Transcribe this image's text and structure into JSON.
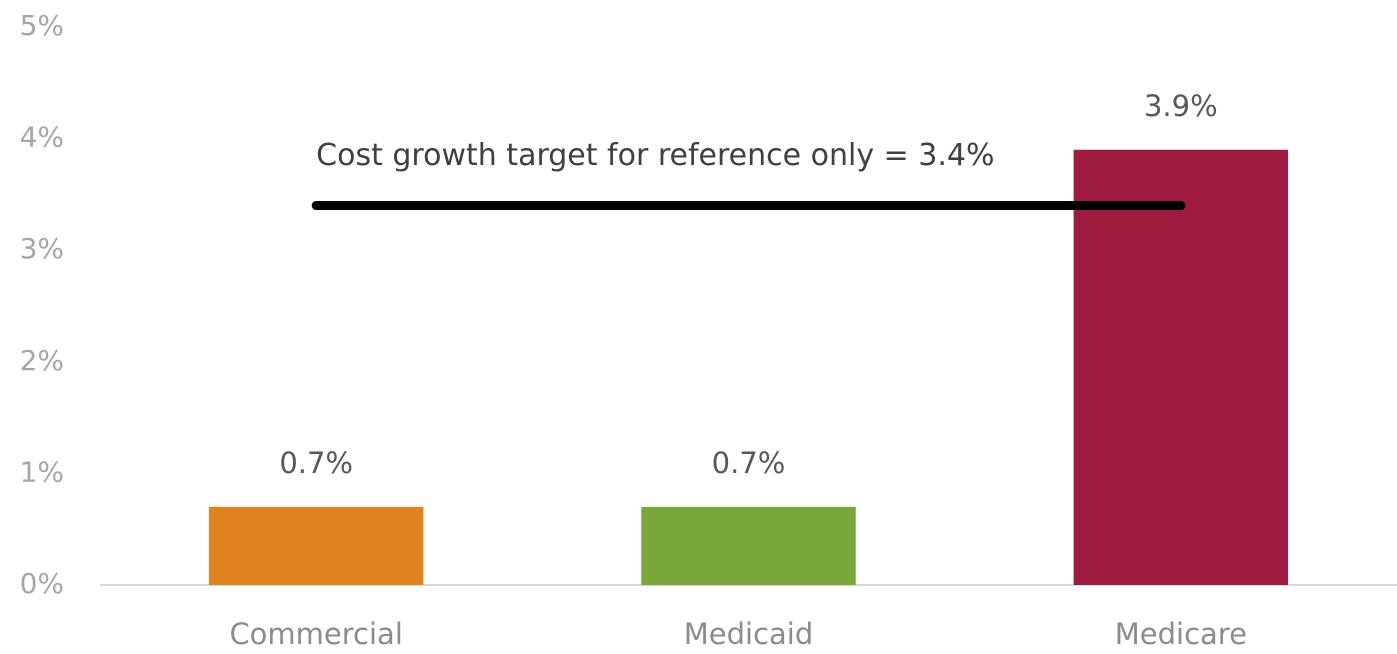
{
  "chart_data": {
    "type": "bar",
    "categories": [
      "Commercial",
      "Medicaid",
      "Medicare"
    ],
    "values": [
      0.7,
      0.7,
      3.9
    ],
    "value_labels": [
      "0.7%",
      "0.7%",
      "3.9%"
    ],
    "colors": [
      "#e0821e",
      "#7aa73a",
      "#9e1a3e"
    ],
    "ylim": [
      0,
      5
    ],
    "yticks": [
      {
        "value": 0,
        "label": "0%"
      },
      {
        "value": 1,
        "label": "1%"
      },
      {
        "value": 2,
        "label": "2%"
      },
      {
        "value": 3,
        "label": "3%"
      },
      {
        "value": 4,
        "label": "4%"
      },
      {
        "value": 5,
        "label": "5%"
      }
    ],
    "grid": false,
    "reference": {
      "value": 3.4,
      "label": "Cost growth target for reference only = 3.4%"
    }
  }
}
